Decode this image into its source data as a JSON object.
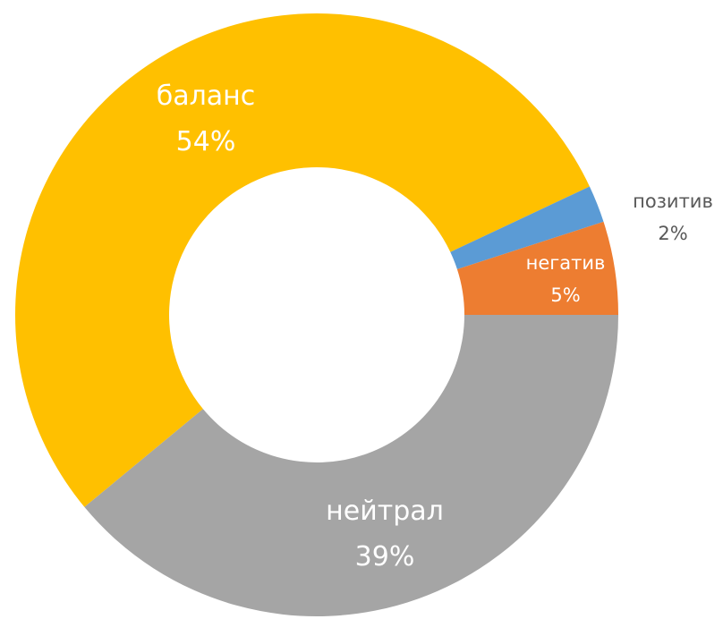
{
  "chart_data": {
    "type": "donut",
    "categories": [
      "нейтрал",
      "баланс",
      "позитив",
      "негатив"
    ],
    "values": [
      39,
      54,
      2,
      5
    ],
    "value_labels": [
      "39%",
      "54%",
      "2%",
      "5%"
    ],
    "colors": [
      "#a5a5a5",
      "#ffc000",
      "#5b9bd5",
      "#ed7d31"
    ]
  }
}
